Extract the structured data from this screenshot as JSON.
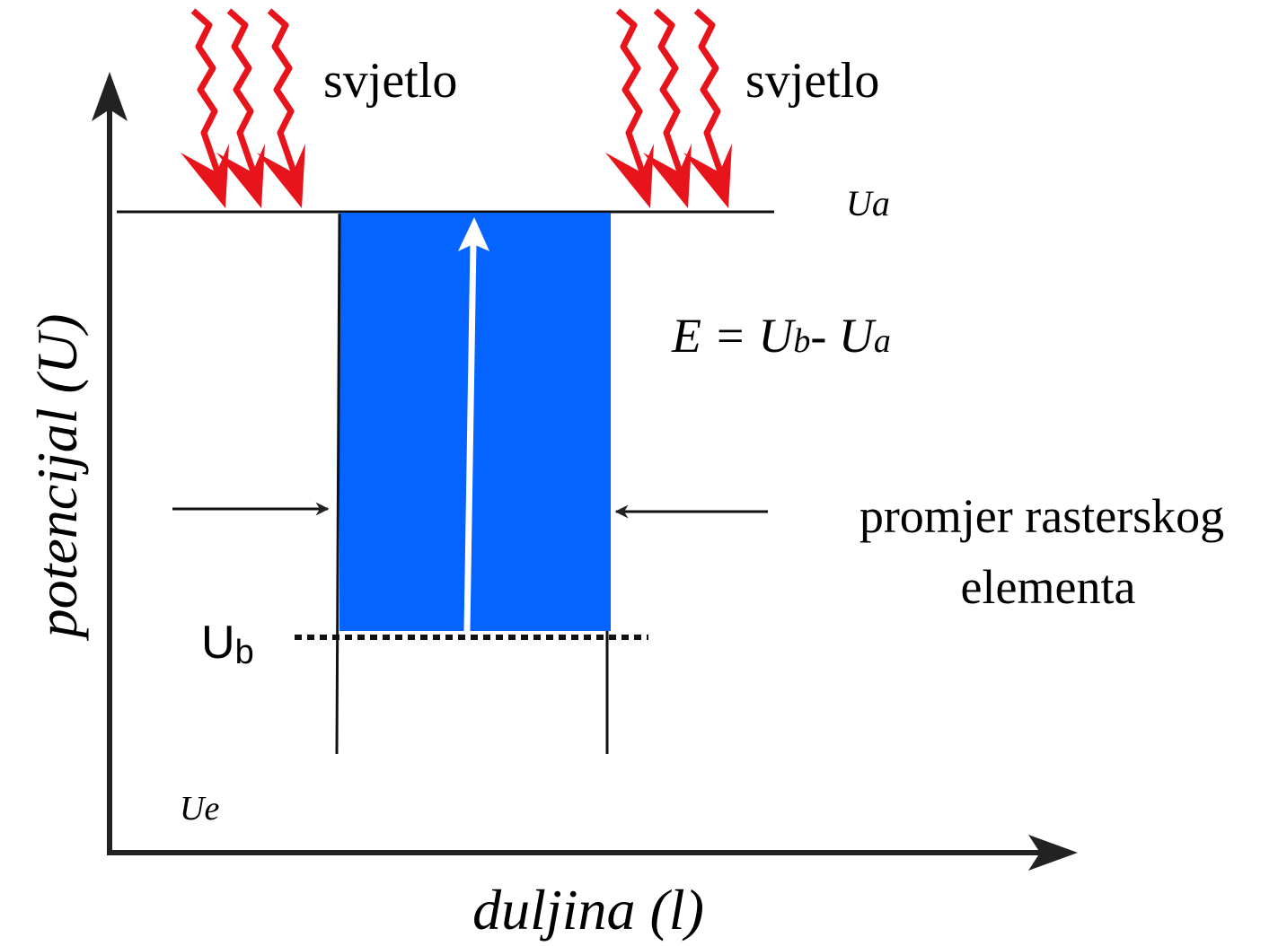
{
  "light_left": "svjetlo",
  "light_right": "svjetlo",
  "ua_label": "Ua",
  "equation": [
    "E = U",
    "b",
    "- U",
    "a"
  ],
  "diameter_label": [
    "promjer rasterskog",
    "elementa"
  ],
  "ub_label": {
    "main": "U",
    "sub": "b"
  },
  "ue_label": "Ue",
  "y_axis_label": "potencijal (U)",
  "x_axis_label": "duljina (l)"
}
